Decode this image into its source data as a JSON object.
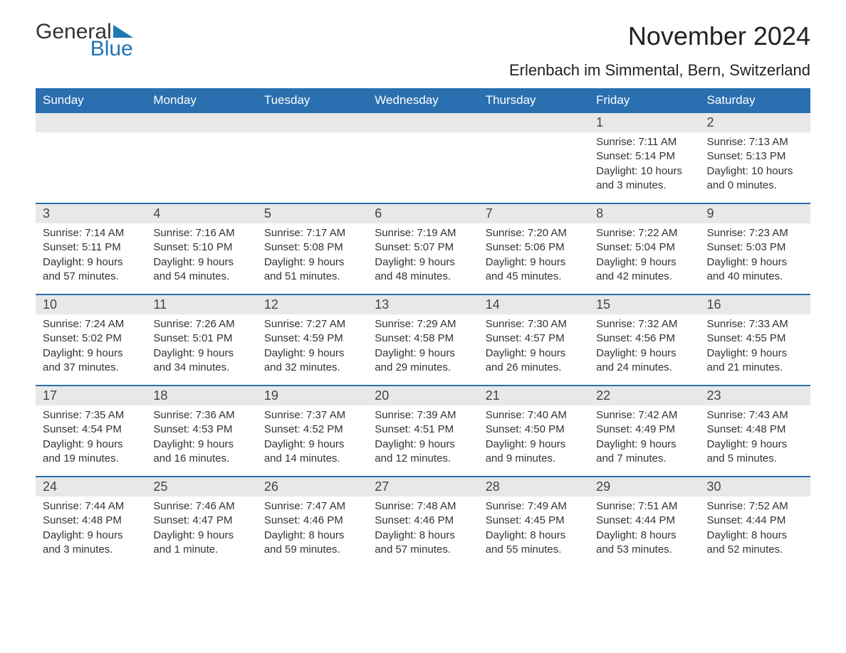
{
  "logo": {
    "text1": "General",
    "text2": "Blue",
    "tri_color": "#1f77b4"
  },
  "title": "November 2024",
  "location": "Erlenbach im Simmental, Bern, Switzerland",
  "colors": {
    "header_bg": "#2a6fb0",
    "header_text": "#ffffff",
    "daynum_bg": "#e8e8e8",
    "daynum_text": "#444444",
    "body_text": "#333333",
    "rule": "#2a6fb0"
  },
  "day_headers": [
    "Sunday",
    "Monday",
    "Tuesday",
    "Wednesday",
    "Thursday",
    "Friday",
    "Saturday"
  ],
  "weeks": [
    [
      {
        "n": "",
        "lines": [
          "",
          "",
          "",
          ""
        ]
      },
      {
        "n": "",
        "lines": [
          "",
          "",
          "",
          ""
        ]
      },
      {
        "n": "",
        "lines": [
          "",
          "",
          "",
          ""
        ]
      },
      {
        "n": "",
        "lines": [
          "",
          "",
          "",
          ""
        ]
      },
      {
        "n": "",
        "lines": [
          "",
          "",
          "",
          ""
        ]
      },
      {
        "n": "1",
        "lines": [
          "Sunrise: 7:11 AM",
          "Sunset: 5:14 PM",
          "Daylight: 10 hours",
          "and 3 minutes."
        ]
      },
      {
        "n": "2",
        "lines": [
          "Sunrise: 7:13 AM",
          "Sunset: 5:13 PM",
          "Daylight: 10 hours",
          "and 0 minutes."
        ]
      }
    ],
    [
      {
        "n": "3",
        "lines": [
          "Sunrise: 7:14 AM",
          "Sunset: 5:11 PM",
          "Daylight: 9 hours",
          "and 57 minutes."
        ]
      },
      {
        "n": "4",
        "lines": [
          "Sunrise: 7:16 AM",
          "Sunset: 5:10 PM",
          "Daylight: 9 hours",
          "and 54 minutes."
        ]
      },
      {
        "n": "5",
        "lines": [
          "Sunrise: 7:17 AM",
          "Sunset: 5:08 PM",
          "Daylight: 9 hours",
          "and 51 minutes."
        ]
      },
      {
        "n": "6",
        "lines": [
          "Sunrise: 7:19 AM",
          "Sunset: 5:07 PM",
          "Daylight: 9 hours",
          "and 48 minutes."
        ]
      },
      {
        "n": "7",
        "lines": [
          "Sunrise: 7:20 AM",
          "Sunset: 5:06 PM",
          "Daylight: 9 hours",
          "and 45 minutes."
        ]
      },
      {
        "n": "8",
        "lines": [
          "Sunrise: 7:22 AM",
          "Sunset: 5:04 PM",
          "Daylight: 9 hours",
          "and 42 minutes."
        ]
      },
      {
        "n": "9",
        "lines": [
          "Sunrise: 7:23 AM",
          "Sunset: 5:03 PM",
          "Daylight: 9 hours",
          "and 40 minutes."
        ]
      }
    ],
    [
      {
        "n": "10",
        "lines": [
          "Sunrise: 7:24 AM",
          "Sunset: 5:02 PM",
          "Daylight: 9 hours",
          "and 37 minutes."
        ]
      },
      {
        "n": "11",
        "lines": [
          "Sunrise: 7:26 AM",
          "Sunset: 5:01 PM",
          "Daylight: 9 hours",
          "and 34 minutes."
        ]
      },
      {
        "n": "12",
        "lines": [
          "Sunrise: 7:27 AM",
          "Sunset: 4:59 PM",
          "Daylight: 9 hours",
          "and 32 minutes."
        ]
      },
      {
        "n": "13",
        "lines": [
          "Sunrise: 7:29 AM",
          "Sunset: 4:58 PM",
          "Daylight: 9 hours",
          "and 29 minutes."
        ]
      },
      {
        "n": "14",
        "lines": [
          "Sunrise: 7:30 AM",
          "Sunset: 4:57 PM",
          "Daylight: 9 hours",
          "and 26 minutes."
        ]
      },
      {
        "n": "15",
        "lines": [
          "Sunrise: 7:32 AM",
          "Sunset: 4:56 PM",
          "Daylight: 9 hours",
          "and 24 minutes."
        ]
      },
      {
        "n": "16",
        "lines": [
          "Sunrise: 7:33 AM",
          "Sunset: 4:55 PM",
          "Daylight: 9 hours",
          "and 21 minutes."
        ]
      }
    ],
    [
      {
        "n": "17",
        "lines": [
          "Sunrise: 7:35 AM",
          "Sunset: 4:54 PM",
          "Daylight: 9 hours",
          "and 19 minutes."
        ]
      },
      {
        "n": "18",
        "lines": [
          "Sunrise: 7:36 AM",
          "Sunset: 4:53 PM",
          "Daylight: 9 hours",
          "and 16 minutes."
        ]
      },
      {
        "n": "19",
        "lines": [
          "Sunrise: 7:37 AM",
          "Sunset: 4:52 PM",
          "Daylight: 9 hours",
          "and 14 minutes."
        ]
      },
      {
        "n": "20",
        "lines": [
          "Sunrise: 7:39 AM",
          "Sunset: 4:51 PM",
          "Daylight: 9 hours",
          "and 12 minutes."
        ]
      },
      {
        "n": "21",
        "lines": [
          "Sunrise: 7:40 AM",
          "Sunset: 4:50 PM",
          "Daylight: 9 hours",
          "and 9 minutes."
        ]
      },
      {
        "n": "22",
        "lines": [
          "Sunrise: 7:42 AM",
          "Sunset: 4:49 PM",
          "Daylight: 9 hours",
          "and 7 minutes."
        ]
      },
      {
        "n": "23",
        "lines": [
          "Sunrise: 7:43 AM",
          "Sunset: 4:48 PM",
          "Daylight: 9 hours",
          "and 5 minutes."
        ]
      }
    ],
    [
      {
        "n": "24",
        "lines": [
          "Sunrise: 7:44 AM",
          "Sunset: 4:48 PM",
          "Daylight: 9 hours",
          "and 3 minutes."
        ]
      },
      {
        "n": "25",
        "lines": [
          "Sunrise: 7:46 AM",
          "Sunset: 4:47 PM",
          "Daylight: 9 hours",
          "and 1 minute."
        ]
      },
      {
        "n": "26",
        "lines": [
          "Sunrise: 7:47 AM",
          "Sunset: 4:46 PM",
          "Daylight: 8 hours",
          "and 59 minutes."
        ]
      },
      {
        "n": "27",
        "lines": [
          "Sunrise: 7:48 AM",
          "Sunset: 4:46 PM",
          "Daylight: 8 hours",
          "and 57 minutes."
        ]
      },
      {
        "n": "28",
        "lines": [
          "Sunrise: 7:49 AM",
          "Sunset: 4:45 PM",
          "Daylight: 8 hours",
          "and 55 minutes."
        ]
      },
      {
        "n": "29",
        "lines": [
          "Sunrise: 7:51 AM",
          "Sunset: 4:44 PM",
          "Daylight: 8 hours",
          "and 53 minutes."
        ]
      },
      {
        "n": "30",
        "lines": [
          "Sunrise: 7:52 AM",
          "Sunset: 4:44 PM",
          "Daylight: 8 hours",
          "and 52 minutes."
        ]
      }
    ]
  ]
}
